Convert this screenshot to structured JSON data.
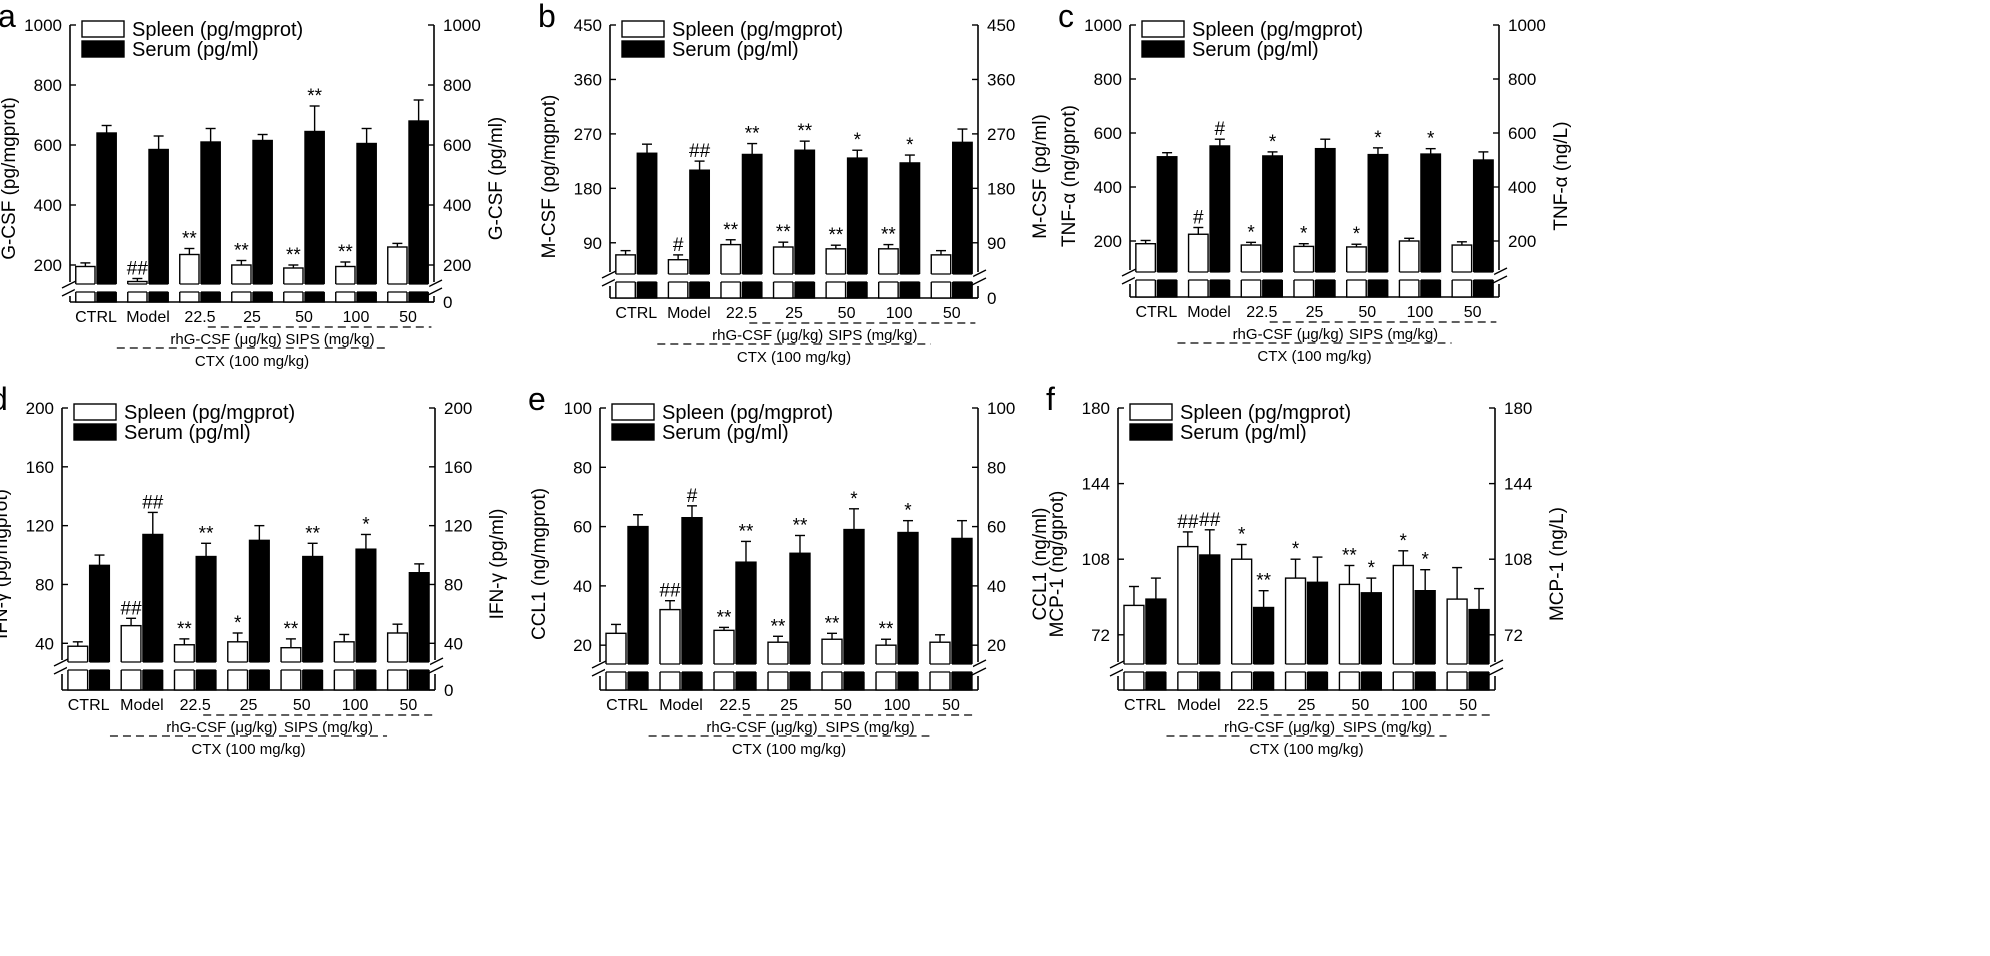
{
  "figure": {
    "legend_spleen_default": "Spleen (pg/mgprot)",
    "legend_serum_default": "Serum (pg/ml)",
    "categories": [
      "CTRL",
      "Model",
      "22.5",
      "25",
      "50",
      "100",
      "50"
    ],
    "groups": {
      "rhg": "rhG-CSF (μg/kg)",
      "sips": "SIPS (mg/kg)",
      "ctx": "CTX (100 mg/kg)"
    }
  },
  "chart_data": [
    {
      "panel": "a",
      "type": "bar",
      "ylabel_left": "G-CSF (pg/mgprot)",
      "ylabel_right": "G-CSF (pg/ml)",
      "ylim": [
        0,
        1000
      ],
      "break_below": 150,
      "left_ticks": [
        200,
        400,
        600,
        800,
        1000
      ],
      "right_ticks": [
        0,
        200,
        400,
        600,
        800,
        1000
      ],
      "legend": [
        "Spleen (pg/mgprot)",
        "Serum (pg/ml)"
      ],
      "categories": [
        "CTRL",
        "Model",
        "22.5",
        "25",
        "50",
        "100",
        "50"
      ],
      "series": [
        {
          "name": "Spleen (pg/mgprot)",
          "values": [
            195,
            145,
            235,
            200,
            190,
            195,
            260
          ],
          "errors": [
            12,
            10,
            20,
            15,
            10,
            15,
            12
          ],
          "labels": [
            "",
            "##",
            "**",
            "**",
            "**",
            "**",
            ""
          ]
        },
        {
          "name": "Serum (pg/ml)",
          "values": [
            640,
            585,
            610,
            615,
            645,
            605,
            680
          ],
          "errors": [
            25,
            45,
            45,
            20,
            85,
            50,
            70
          ],
          "labels": [
            "",
            "",
            "",
            "",
            "**",
            "",
            ""
          ]
        }
      ]
    },
    {
      "panel": "b",
      "type": "bar",
      "ylabel_left": "M-CSF (pg/mgprot)",
      "ylabel_right": "M-CSF (pg/ml)",
      "ylim": [
        0,
        450
      ],
      "break_below": 45,
      "left_ticks": [
        90,
        180,
        270,
        360,
        450
      ],
      "right_ticks": [
        0,
        90,
        180,
        270,
        360,
        450
      ],
      "legend": [
        "Spleen (pg/mgprot)",
        "Serum (pg/ml)"
      ],
      "categories": [
        "CTRL",
        "Model",
        "22.5",
        "25",
        "50",
        "100",
        "50"
      ],
      "series": [
        {
          "name": "Spleen (pg/mgprot)",
          "values": [
            70,
            62,
            87,
            83,
            80,
            80,
            70
          ],
          "errors": [
            7,
            8,
            8,
            8,
            6,
            7,
            7
          ],
          "labels": [
            "",
            "#",
            "**",
            "**",
            "**",
            "**",
            ""
          ]
        },
        {
          "name": "Serum (pg/ml)",
          "values": [
            238,
            210,
            236,
            243,
            230,
            222,
            256
          ],
          "errors": [
            15,
            15,
            18,
            15,
            13,
            13,
            22
          ],
          "labels": [
            "",
            "##",
            "**",
            "**",
            "*",
            "*",
            ""
          ]
        }
      ]
    },
    {
      "panel": "c",
      "type": "bar",
      "ylabel_left": "TNF-α (ng/gprot)",
      "ylabel_right": "TNF-α (ng/L)",
      "ylim": [
        0,
        1000
      ],
      "break_below": 100,
      "left_ticks": [
        200,
        400,
        600,
        800,
        1000
      ],
      "right_ticks": [
        200,
        400,
        600,
        800,
        1000
      ],
      "legend": [
        "Spleen (pg/mgprot)",
        "Serum (pg/ml)"
      ],
      "categories": [
        "CTRL",
        "Model",
        "22.5",
        "25",
        "50",
        "100",
        "50"
      ],
      "series": [
        {
          "name": "Spleen (pg/mgprot)",
          "values": [
            190,
            225,
            185,
            180,
            178,
            200,
            185
          ],
          "errors": [
            12,
            25,
            10,
            10,
            10,
            10,
            12
          ],
          "labels": [
            "",
            "#",
            "*",
            "*",
            "*",
            "",
            ""
          ]
        },
        {
          "name": "Serum (pg/ml)",
          "values": [
            512,
            552,
            515,
            542,
            520,
            522,
            500
          ],
          "errors": [
            15,
            25,
            15,
            35,
            25,
            20,
            30
          ],
          "labels": [
            "",
            "#",
            "*",
            "",
            "*",
            "*",
            ""
          ]
        }
      ]
    },
    {
      "panel": "d",
      "type": "bar",
      "ylabel_left": "IFN-γ (pg/mgprot)",
      "ylabel_right": "IFN-γ (pg/ml)",
      "ylim": [
        0,
        200
      ],
      "break_below": 30,
      "left_ticks": [
        40,
        80,
        120,
        160,
        200
      ],
      "right_ticks": [
        0,
        40,
        80,
        120,
        160,
        200
      ],
      "legend": [
        "Spleen (pg/mgprot)",
        "Serum (pg/ml)"
      ],
      "categories": [
        "CTRL",
        "Model",
        "22.5",
        "25",
        "50",
        "100",
        "50"
      ],
      "series": [
        {
          "name": "Spleen (pg/mgprot)",
          "values": [
            38,
            52,
            39,
            41,
            37,
            41,
            47
          ],
          "errors": [
            3,
            5,
            4,
            6,
            6,
            5,
            6
          ],
          "labels": [
            "",
            "##",
            "**",
            "*",
            "**",
            "",
            ""
          ]
        },
        {
          "name": "Serum (pg/ml)",
          "values": [
            93,
            114,
            99,
            110,
            99,
            104,
            88
          ],
          "errors": [
            7,
            15,
            9,
            10,
            9,
            10,
            6
          ],
          "labels": [
            "",
            "##",
            "**",
            "",
            "**",
            "*",
            ""
          ]
        }
      ]
    },
    {
      "panel": "e",
      "type": "bar",
      "ylabel_left": "CCL1 (ng/mgprot)",
      "ylabel_right": "CCL1 (ng/ml)",
      "ylim": [
        0,
        100
      ],
      "break_below": 15,
      "left_ticks": [
        20,
        40,
        60,
        80,
        100
      ],
      "right_ticks": [
        20,
        40,
        60,
        80,
        100
      ],
      "legend": [
        "Spleen (pg/mgprot)",
        "Serum (pg/ml)"
      ],
      "categories": [
        "CTRL",
        "Model",
        "22.5",
        "25",
        "50",
        "100",
        "50"
      ],
      "series": [
        {
          "name": "Spleen (pg/mgprot)",
          "values": [
            24,
            32,
            25,
            21,
            22,
            20,
            21
          ],
          "errors": [
            3,
            3,
            1,
            2,
            2,
            2,
            2.5
          ],
          "labels": [
            "",
            "##",
            "**",
            "**",
            "**",
            "**",
            ""
          ]
        },
        {
          "name": "Serum (pg/ml)",
          "values": [
            60,
            63,
            48,
            51,
            59,
            58,
            56
          ],
          "errors": [
            4,
            4,
            7,
            6,
            7,
            4,
            6
          ],
          "labels": [
            "",
            "#",
            "**",
            "**",
            "*",
            "*",
            ""
          ]
        }
      ]
    },
    {
      "panel": "f",
      "type": "bar",
      "ylabel_left": "MCP-1 (ng/gprot)",
      "ylabel_right": "MCP-1 (ng/L)",
      "ylim": [
        0,
        180
      ],
      "break_below": 60,
      "left_ticks": [
        72,
        108,
        144,
        180
      ],
      "right_ticks": [
        72,
        108,
        144,
        180
      ],
      "legend": [
        "Spleen (pg/mgprot)",
        "Serum (pg/ml)"
      ],
      "categories": [
        "CTRL",
        "Model",
        "22.5",
        "25",
        "50",
        "100",
        "50"
      ],
      "series": [
        {
          "name": "Spleen (pg/mgprot)",
          "values": [
            86,
            114,
            108,
            99,
            96,
            105,
            89
          ],
          "errors": [
            9,
            7,
            7,
            9,
            9,
            7,
            15
          ],
          "labels": [
            "",
            "##",
            "*",
            "*",
            "**",
            "*",
            ""
          ]
        },
        {
          "name": "Serum (pg/ml)",
          "values": [
            89,
            110,
            85,
            97,
            92,
            93,
            84
          ],
          "errors": [
            10,
            12,
            8,
            12,
            7,
            10,
            10
          ],
          "labels": [
            "",
            "##",
            "**",
            "",
            "*",
            "*",
            ""
          ]
        }
      ]
    }
  ]
}
